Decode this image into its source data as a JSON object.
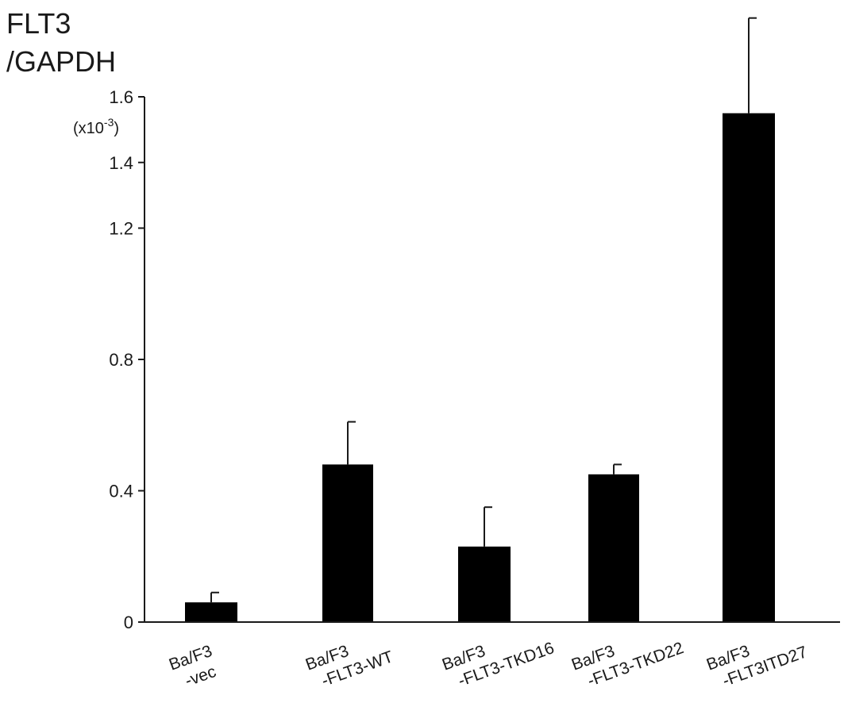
{
  "chart_data": {
    "type": "bar",
    "title": "",
    "ylabel_lines": [
      "FLT3",
      "/GAPDH"
    ],
    "y_unit_note": {
      "prefix": "(x10",
      "exponent": "-3",
      "suffix": ")"
    },
    "xlabel": "",
    "ylim": [
      0,
      1.6
    ],
    "yticks": [
      0,
      0.4,
      0.8,
      1.2,
      1.4,
      1.6
    ],
    "ytick_labels": [
      "0",
      "0.4",
      "0.8",
      "1.2",
      "1.4",
      "1.6"
    ],
    "grid": false,
    "legend": "none",
    "categories": [
      [
        "Ba/F3",
        "-vec"
      ],
      [
        "Ba/F3",
        "-FLT3-WT"
      ],
      [
        "Ba/F3",
        "-FLT3-TKD16"
      ],
      [
        "Ba/F3",
        "-FLT3-TKD22"
      ],
      [
        "Ba/F3",
        "-FLT3ITD27"
      ]
    ],
    "values": [
      0.06,
      0.48,
      0.23,
      0.45,
      1.55
    ],
    "errors": [
      0.03,
      0.13,
      0.12,
      0.03,
      0.29
    ],
    "bar_color": "#000000"
  }
}
